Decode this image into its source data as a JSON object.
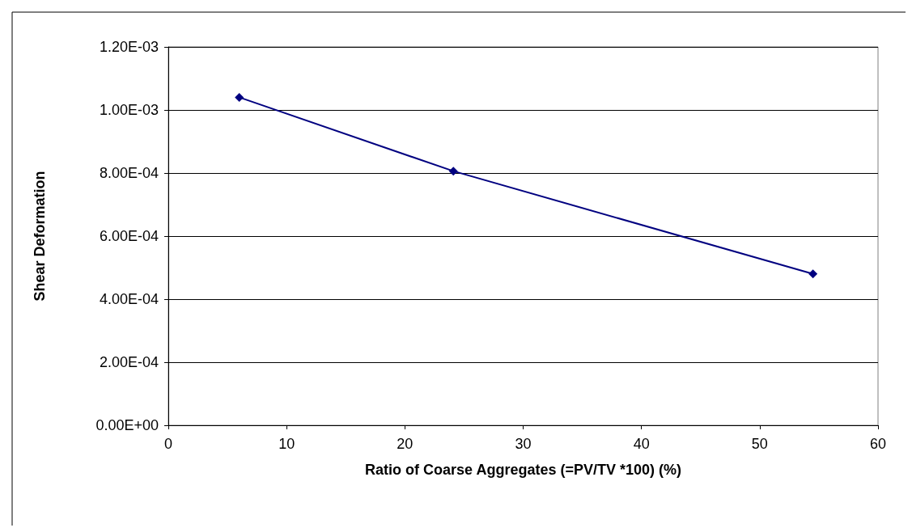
{
  "chart_data": {
    "type": "line",
    "xlabel": "Ratio of Coarse Aggregates (=PV/TV *100) (%)",
    "ylabel": "Shear Deformation",
    "x": [
      6.0,
      24.1,
      54.5
    ],
    "series": [
      {
        "color": "#000080",
        "values": [
          0.00104,
          0.000806,
          0.00048
        ]
      }
    ],
    "xlim": [
      0,
      60
    ],
    "xticks": [
      0,
      10,
      20,
      30,
      40,
      50,
      60
    ],
    "ylim": [
      0,
      0.0012
    ],
    "yticks": [
      {
        "value": 0,
        "label": "0.00E+00"
      },
      {
        "value": 0.0002,
        "label": "2.00E-04"
      },
      {
        "value": 0.0004,
        "label": "4.00E-04"
      },
      {
        "value": 0.0006,
        "label": "6.00E-04"
      },
      {
        "value": 0.0008,
        "label": "8.00E-04"
      },
      {
        "value": 0.001,
        "label": "1.00E-03"
      },
      {
        "value": 0.0012,
        "label": "1.20E-03"
      }
    ],
    "grid": "y",
    "marker": "diamond",
    "line_style": "solid"
  }
}
